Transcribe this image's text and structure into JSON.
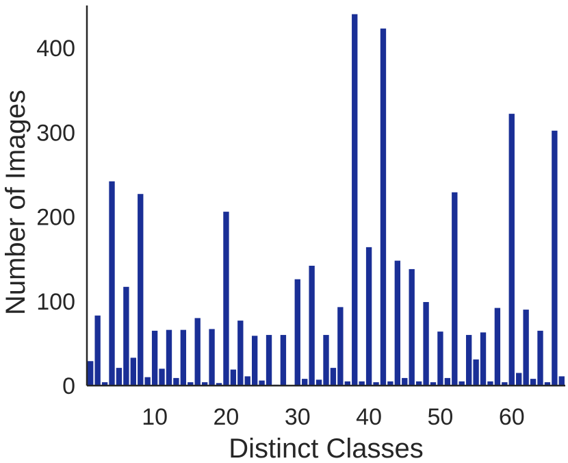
{
  "colors": {
    "bar": "#1a2f96",
    "axis": "#262626",
    "background": "#ffffff"
  },
  "chart_data": {
    "type": "bar",
    "title": "",
    "xlabel": "Distinct Classes",
    "ylabel": "Number of Images",
    "xlim": [
      0.5,
      67.5
    ],
    "ylim": [
      0,
      450
    ],
    "xticks": [
      10,
      20,
      30,
      40,
      50,
      60
    ],
    "yticks": [
      0,
      100,
      200,
      300,
      400
    ],
    "grid": false,
    "legend": "none",
    "categories": [
      1,
      2,
      3,
      4,
      5,
      6,
      7,
      8,
      9,
      10,
      11,
      12,
      13,
      14,
      15,
      16,
      17,
      18,
      19,
      20,
      21,
      22,
      23,
      24,
      25,
      26,
      27,
      28,
      29,
      30,
      31,
      32,
      33,
      34,
      35,
      36,
      37,
      38,
      39,
      40,
      41,
      42,
      43,
      44,
      45,
      46,
      47,
      48,
      49,
      50,
      51,
      52,
      53,
      54,
      55,
      56,
      57,
      58,
      59,
      60,
      61,
      62,
      63,
      64,
      65,
      66,
      67
    ],
    "values": [
      29,
      83,
      4,
      242,
      21,
      117,
      33,
      227,
      10,
      65,
      20,
      66,
      9,
      66,
      4,
      80,
      4,
      67,
      3,
      206,
      19,
      77,
      11,
      59,
      6,
      60,
      1,
      60,
      0,
      126,
      8,
      142,
      7,
      60,
      21,
      93,
      5,
      440,
      5,
      164,
      4,
      423,
      5,
      148,
      9,
      138,
      5,
      99,
      4,
      64,
      9,
      229,
      5,
      60,
      31,
      63,
      5,
      92,
      4,
      322,
      15,
      90,
      8,
      65,
      4,
      302,
      11
    ]
  }
}
